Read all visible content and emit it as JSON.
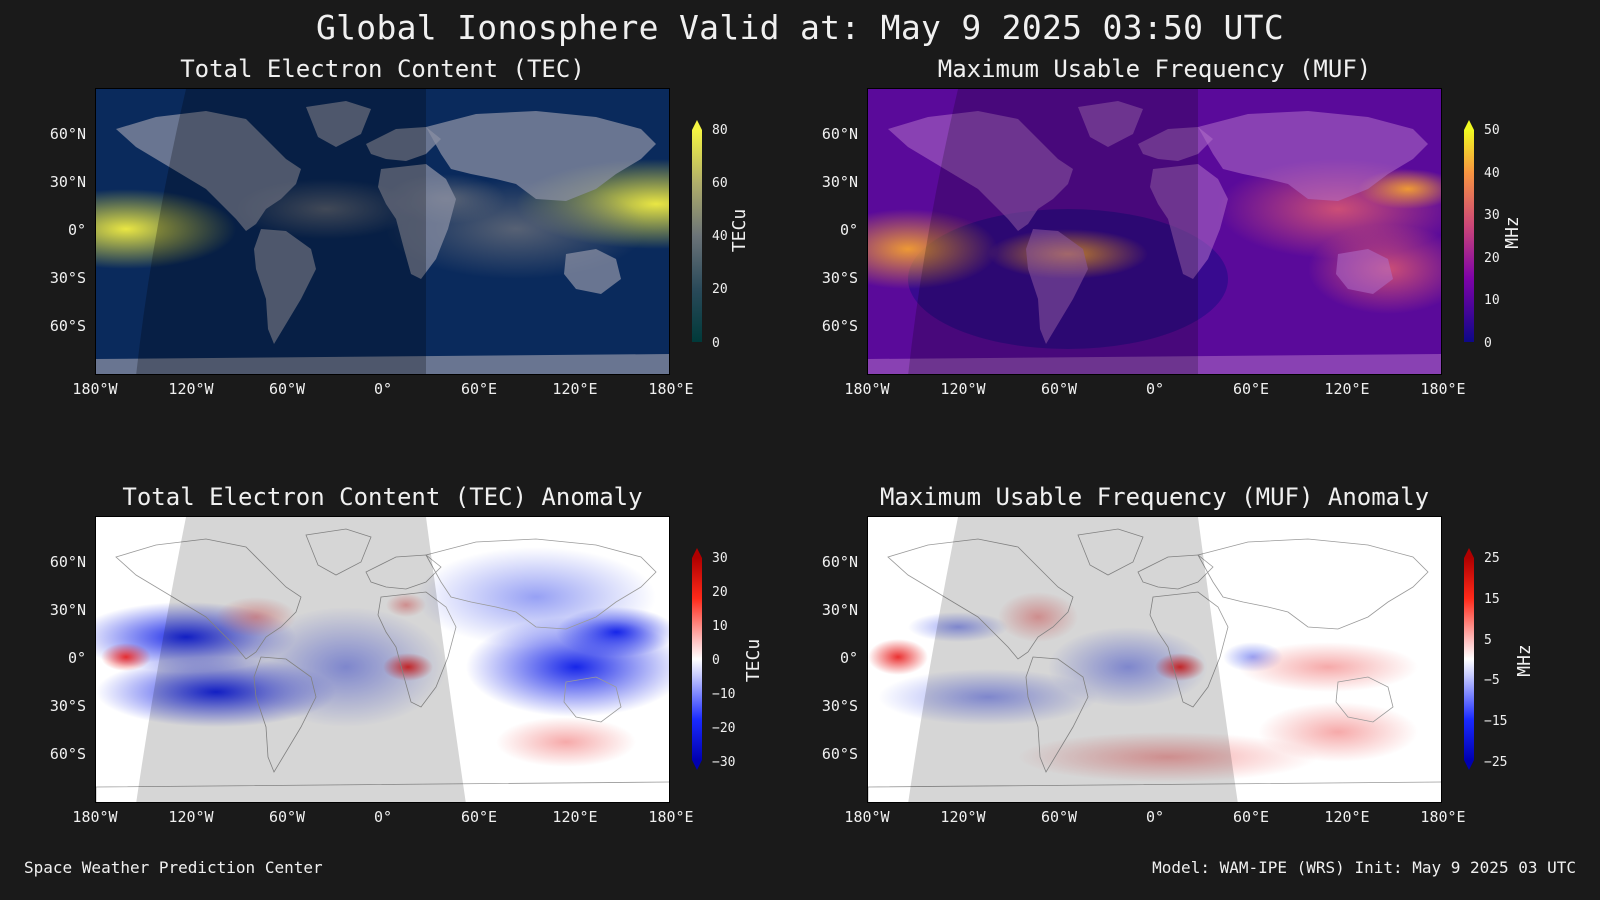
{
  "title": "Global Ionosphere Valid at: May 9 2025 03:50 UTC",
  "footer": {
    "left": "Space Weather Prediction Center",
    "right": "Model: WAM-IPE (WRS) Init: May 9 2025 03 UTC"
  },
  "lat_labels": [
    "60°N",
    "30°N",
    "0°",
    "30°S",
    "60°S"
  ],
  "lon_labels": [
    "180°W",
    "120°W",
    "60°W",
    "0°",
    "60°E",
    "120°E",
    "180°E"
  ],
  "panels": [
    {
      "id": "tec",
      "title": "Total Electron Content (TEC)",
      "unit": "TECu",
      "ticks": [
        "80",
        "60",
        "40",
        "20",
        "0"
      ],
      "colors": {
        "low": "#0a2a5c",
        "high": "#f5f542",
        "land": "#8a8fa3"
      }
    },
    {
      "id": "muf",
      "title": "Maximum Usable Frequency (MUF)",
      "unit": "MHz",
      "ticks": [
        "50",
        "40",
        "30",
        "20",
        "10",
        "0"
      ],
      "colors": {
        "low": "#2a0a8a",
        "high": "#f5e642",
        "mid": "#b02ab0"
      }
    },
    {
      "id": "tec-anom",
      "title": "Total Electron Content (TEC) Anomaly",
      "unit": "TECu",
      "ticks": [
        "30",
        "20",
        "10",
        "0",
        "−10",
        "−20",
        "−30"
      ],
      "colors": {
        "neg": "#0a1ae8",
        "pos": "#e81a1a",
        "zero": "#ffffff"
      }
    },
    {
      "id": "muf-anom",
      "title": "Maximum Usable Frequency (MUF) Anomaly",
      "unit": "MHz",
      "ticks": [
        "25",
        "15",
        "5",
        "−5",
        "−15",
        "−25"
      ],
      "colors": {
        "neg": "#0a1ae8",
        "pos": "#e81a1a",
        "zero": "#ffffff"
      }
    }
  ]
}
